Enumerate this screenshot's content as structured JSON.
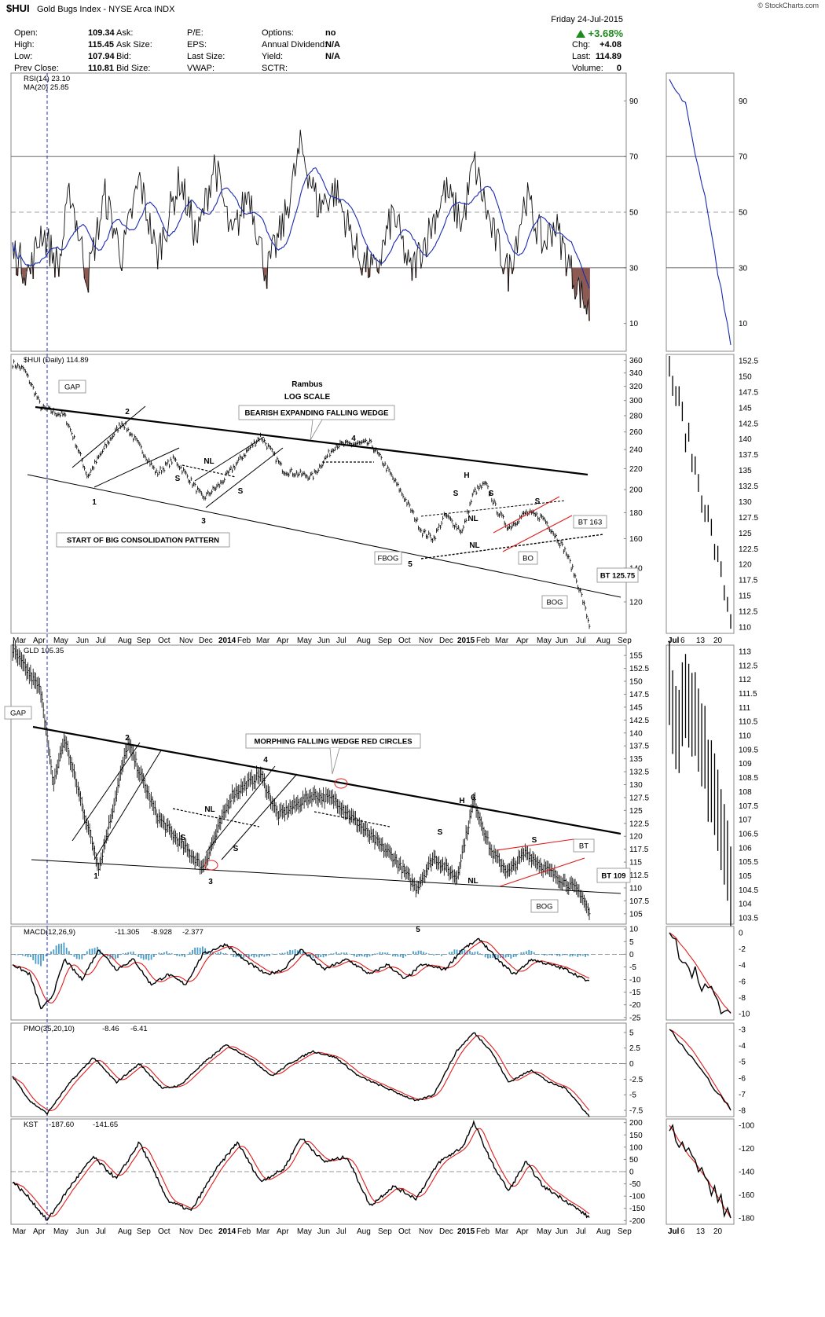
{
  "header": {
    "symbol": "$HUI",
    "name": "Gold Bugs Index - NYSE Arca INDX",
    "watermark": "© StockCharts.com",
    "date": "Friday 24-Jul-2015",
    "change_pct": "+3.68%",
    "quote": [
      [
        "Open:",
        "109.34",
        "Ask:",
        "",
        "P/E:",
        "",
        "Options:",
        "no"
      ],
      [
        "High:",
        "115.45",
        "Ask Size:",
        "",
        "EPS:",
        "",
        "Annual Dividend:",
        "N/A"
      ],
      [
        "Low:",
        "107.94",
        "Bid:",
        "",
        "Last Size:",
        "",
        "Yield:",
        "N/A"
      ],
      [
        "Prev Close:",
        "110.81",
        "Bid Size:",
        "",
        "VWAP:",
        "",
        "SCTR:",
        ""
      ]
    ],
    "stats": [
      [
        "Chg:",
        "+4.08"
      ],
      [
        "Last:",
        "114.89"
      ],
      [
        "Volume:",
        "0"
      ]
    ]
  },
  "colors": {
    "price": "#000000",
    "ma": "#1a2ab0",
    "signal": "#e01b1b",
    "rsi_fill": "#8c5a52",
    "hist": "#4a9cc9",
    "annot_blue": "#0b24c6",
    "event_line": "#2233cc"
  },
  "x_axis_labels": [
    "Mar",
    "Apr",
    "May",
    "Jun",
    "Jul",
    "Aug",
    "Sep",
    "Oct",
    "Nov",
    "Dec",
    "2014",
    "Feb",
    "Mar",
    "Apr",
    "May",
    "Jun",
    "Jul",
    "Aug",
    "Sep",
    "Oct",
    "Nov",
    "Dec",
    "2015",
    "Feb",
    "Mar",
    "Apr",
    "May",
    "Jun",
    "Jul",
    "Aug",
    "Sep"
  ],
  "zoom_x_labels": [
    "Jul",
    "6",
    "13",
    "20"
  ],
  "chart_data": [
    {
      "type": "line",
      "panel": "RSI",
      "legend": [
        "RSI(14) 23.10",
        "MA(20) 25.85"
      ],
      "series": [
        {
          "name": "RSI(14)",
          "last": 23.1
        },
        {
          "name": "MA(20)",
          "last": 25.85
        }
      ],
      "y_ticks": [
        10,
        30,
        50,
        70,
        90
      ],
      "ylim": [
        0,
        100
      ],
      "reference_lines": [
        30,
        50,
        70
      ]
    },
    {
      "type": "line",
      "panel": "$HUI",
      "legend": [
        "$HUI (Daily) 114.89"
      ],
      "scale": "log",
      "y_ticks": [
        120,
        140,
        160,
        180,
        200,
        220,
        240,
        260,
        280,
        300,
        320,
        340,
        360
      ],
      "zoom_y_ticks": [
        110.0,
        112.5,
        115.0,
        117.5,
        120.0,
        122.5,
        125.0,
        127.5,
        130.0,
        132.5,
        135.0,
        137.5,
        140.0,
        142.5,
        145.0,
        147.5,
        150.0,
        152.5
      ],
      "ylim": [
        104,
        370
      ],
      "annotations": [
        "GAP",
        "Rambus",
        "LOG SCALE",
        "BEARISH EXPANDING FALLING WEDGE",
        "START OF BIG CONSOLIDATION PATTERN",
        "1",
        "2",
        "3",
        "4",
        "5",
        "S",
        "S",
        "NL",
        "H",
        "S",
        "S",
        "NL",
        "NL",
        "S",
        "BT 163",
        "BO",
        "FBOG",
        "BT 125.75",
        "BOG"
      ]
    },
    {
      "type": "line",
      "panel": "GLD",
      "legend": [
        "GLD 105.35"
      ],
      "y_ticks": [
        105.0,
        107.5,
        110.0,
        112.5,
        115.0,
        117.5,
        120.0,
        122.5,
        125.0,
        127.5,
        130.0,
        132.5,
        135.0,
        137.5,
        140.0,
        142.5,
        145.0,
        147.5,
        150.0,
        152.5,
        155.0
      ],
      "zoom_y_ticks": [
        103.5,
        104.0,
        104.5,
        105.0,
        105.5,
        106.0,
        106.5,
        107.0,
        107.5,
        108.0,
        108.5,
        109.0,
        109.5,
        110.0,
        110.5,
        111.0,
        111.5,
        112.0,
        112.5,
        113.0
      ],
      "ylim": [
        103,
        157
      ],
      "annotations": [
        "GAP",
        "MORPHING FALLING WEDGE RED CIRCLES",
        "1",
        "2",
        "3",
        "4",
        "5",
        "6",
        "H",
        "S",
        "S",
        "NL",
        "S",
        "NL",
        "S",
        "BT",
        "BT 109",
        "BOG"
      ]
    },
    {
      "type": "line",
      "panel": "MACD",
      "legend": [
        "MACD(12,26,9)",
        "-11.305",
        "-8.928",
        "-2.377"
      ],
      "y_ticks": [
        -25,
        -20,
        -15,
        -10,
        -5,
        0,
        5,
        10
      ],
      "zoom_y_ticks": [
        -10,
        -8,
        -6,
        -4,
        -2,
        0
      ],
      "ylim": [
        -26,
        11
      ]
    },
    {
      "type": "line",
      "panel": "PMO",
      "legend": [
        "PMO(35,20,10)",
        "-8.46",
        "-6.41"
      ],
      "y_ticks": [
        -7.5,
        -5.0,
        -2.5,
        0.0,
        2.5,
        5.0
      ],
      "zoom_y_ticks": [
        -8,
        -7,
        -6,
        -5,
        -4,
        -3
      ],
      "ylim": [
        -8.5,
        6.5
      ]
    },
    {
      "type": "line",
      "panel": "KST",
      "legend": [
        "KST",
        "-187.60",
        "-141.65"
      ],
      "y_ticks": [
        -200,
        -150,
        -100,
        -50,
        0,
        50,
        100,
        150,
        200
      ],
      "zoom_y_ticks": [
        -180,
        -160,
        -140,
        -120,
        -100
      ],
      "ylim": [
        -215,
        215
      ]
    }
  ]
}
